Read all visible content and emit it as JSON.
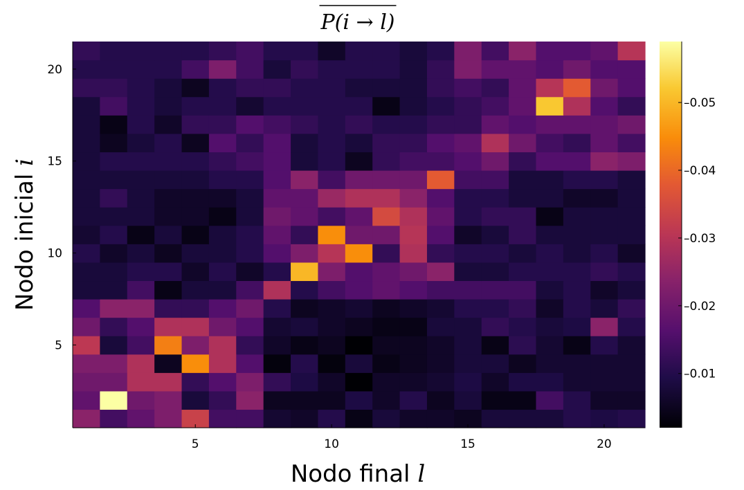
{
  "chart_data": {
    "type": "heatmap",
    "title": "P(i → l)",
    "title_overline": true,
    "xlabel": "Nodo final",
    "xlabel_var": "l",
    "ylabel": "Nodo inicial",
    "ylabel_var": "i",
    "x_ticks": [
      5,
      10,
      15,
      20
    ],
    "y_ticks": [
      5,
      10,
      15,
      20
    ],
    "x_range": [
      0.5,
      21.5
    ],
    "y_range": [
      0.5,
      21.5
    ],
    "colormap": "inferno",
    "colorbar": {
      "min": 0.002,
      "max": 0.059,
      "ticks": [
        0.01,
        0.02,
        0.03,
        0.04,
        0.05
      ],
      "tick_labels": [
        "0.01",
        "0.02",
        "0.03",
        "0.04",
        "0.05"
      ]
    },
    "grid": false,
    "legend": "none",
    "rows_from_i1": [
      [
        0.024,
        0.014,
        0.018,
        0.022,
        0.033,
        0.014,
        0.014,
        0.007,
        0.006,
        0.01,
        0.004,
        0.008,
        0.006,
        0.006,
        0.005,
        0.008,
        0.008,
        0.008,
        0.01,
        0.009,
        0.01
      ],
      [
        0.018,
        0.059,
        0.02,
        0.022,
        0.008,
        0.012,
        0.024,
        0.005,
        0.005,
        0.005,
        0.009,
        0.006,
        0.01,
        0.005,
        0.008,
        0.004,
        0.004,
        0.014,
        0.01,
        0.006,
        0.006
      ],
      [
        0.02,
        0.02,
        0.029,
        0.029,
        0.012,
        0.016,
        0.022,
        0.012,
        0.009,
        0.006,
        0.002,
        0.006,
        0.006,
        0.007,
        0.009,
        0.006,
        0.009,
        0.009,
        0.007,
        0.007,
        0.007
      ],
      [
        0.022,
        0.022,
        0.029,
        0.005,
        0.045,
        0.029,
        0.016,
        0.003,
        0.01,
        0.003,
        0.008,
        0.004,
        0.005,
        0.006,
        0.008,
        0.008,
        0.005,
        0.007,
        0.007,
        0.007,
        0.007
      ],
      [
        0.031,
        0.008,
        0.014,
        0.043,
        0.022,
        0.029,
        0.012,
        0.006,
        0.004,
        0.005,
        0.002,
        0.005,
        0.005,
        0.006,
        0.008,
        0.004,
        0.011,
        0.007,
        0.004,
        0.01,
        0.007
      ],
      [
        0.02,
        0.012,
        0.016,
        0.029,
        0.029,
        0.02,
        0.016,
        0.007,
        0.008,
        0.006,
        0.005,
        0.004,
        0.004,
        0.008,
        0.008,
        0.012,
        0.01,
        0.008,
        0.009,
        0.024,
        0.01
      ],
      [
        0.016,
        0.024,
        0.024,
        0.012,
        0.012,
        0.016,
        0.02,
        0.01,
        0.005,
        0.006,
        0.007,
        0.005,
        0.006,
        0.007,
        0.01,
        0.01,
        0.012,
        0.006,
        0.01,
        0.008,
        0.012
      ],
      [
        0.008,
        0.008,
        0.014,
        0.004,
        0.008,
        0.008,
        0.014,
        0.029,
        0.01,
        0.014,
        0.016,
        0.018,
        0.016,
        0.014,
        0.014,
        0.014,
        0.014,
        0.008,
        0.01,
        0.006,
        0.008
      ],
      [
        0.008,
        0.008,
        0.01,
        0.01,
        0.006,
        0.01,
        0.006,
        0.01,
        0.05,
        0.022,
        0.016,
        0.018,
        0.02,
        0.024,
        0.008,
        0.008,
        0.01,
        0.01,
        0.01,
        0.012,
        0.01
      ],
      [
        0.01,
        0.006,
        0.008,
        0.005,
        0.008,
        0.008,
        0.01,
        0.016,
        0.022,
        0.03,
        0.045,
        0.012,
        0.029,
        0.012,
        0.01,
        0.01,
        0.008,
        0.01,
        0.008,
        0.01,
        0.006
      ],
      [
        0.007,
        0.01,
        0.004,
        0.008,
        0.004,
        0.008,
        0.01,
        0.018,
        0.012,
        0.045,
        0.02,
        0.02,
        0.03,
        0.016,
        0.006,
        0.008,
        0.012,
        0.008,
        0.008,
        0.008,
        0.008
      ],
      [
        0.008,
        0.008,
        0.008,
        0.006,
        0.006,
        0.004,
        0.008,
        0.02,
        0.018,
        0.014,
        0.018,
        0.035,
        0.029,
        0.018,
        0.01,
        0.012,
        0.012,
        0.004,
        0.008,
        0.008,
        0.008
      ],
      [
        0.008,
        0.012,
        0.008,
        0.006,
        0.006,
        0.006,
        0.008,
        0.018,
        0.018,
        0.026,
        0.029,
        0.029,
        0.024,
        0.016,
        0.01,
        0.01,
        0.008,
        0.008,
        0.006,
        0.006,
        0.008
      ],
      [
        0.008,
        0.008,
        0.008,
        0.008,
        0.008,
        0.01,
        0.01,
        0.016,
        0.024,
        0.014,
        0.02,
        0.02,
        0.02,
        0.038,
        0.014,
        0.014,
        0.008,
        0.008,
        0.01,
        0.01,
        0.008
      ],
      [
        0.008,
        0.01,
        0.01,
        0.01,
        0.01,
        0.012,
        0.014,
        0.016,
        0.008,
        0.01,
        0.005,
        0.012,
        0.014,
        0.014,
        0.016,
        0.02,
        0.012,
        0.016,
        0.016,
        0.024,
        0.022
      ],
      [
        0.008,
        0.005,
        0.008,
        0.01,
        0.005,
        0.016,
        0.012,
        0.016,
        0.008,
        0.01,
        0.008,
        0.012,
        0.012,
        0.016,
        0.018,
        0.029,
        0.02,
        0.014,
        0.012,
        0.018,
        0.014
      ],
      [
        0.008,
        0.004,
        0.01,
        0.006,
        0.012,
        0.012,
        0.016,
        0.014,
        0.012,
        0.01,
        0.012,
        0.01,
        0.01,
        0.012,
        0.012,
        0.018,
        0.016,
        0.018,
        0.018,
        0.018,
        0.02
      ],
      [
        0.008,
        0.014,
        0.01,
        0.008,
        0.01,
        0.01,
        0.007,
        0.01,
        0.01,
        0.01,
        0.01,
        0.004,
        0.008,
        0.01,
        0.012,
        0.014,
        0.018,
        0.052,
        0.029,
        0.016,
        0.012
      ],
      [
        0.012,
        0.012,
        0.01,
        0.008,
        0.005,
        0.01,
        0.012,
        0.012,
        0.01,
        0.01,
        0.008,
        0.008,
        0.008,
        0.012,
        0.014,
        0.012,
        0.018,
        0.03,
        0.038,
        0.02,
        0.016
      ],
      [
        0.01,
        0.01,
        0.01,
        0.01,
        0.014,
        0.022,
        0.014,
        0.008,
        0.012,
        0.01,
        0.01,
        0.01,
        0.008,
        0.012,
        0.022,
        0.018,
        0.018,
        0.016,
        0.02,
        0.016,
        0.016
      ],
      [
        0.012,
        0.01,
        0.01,
        0.01,
        0.01,
        0.012,
        0.014,
        0.01,
        0.01,
        0.006,
        0.01,
        0.01,
        0.008,
        0.01,
        0.022,
        0.014,
        0.024,
        0.016,
        0.016,
        0.018,
        0.03
      ]
    ]
  }
}
